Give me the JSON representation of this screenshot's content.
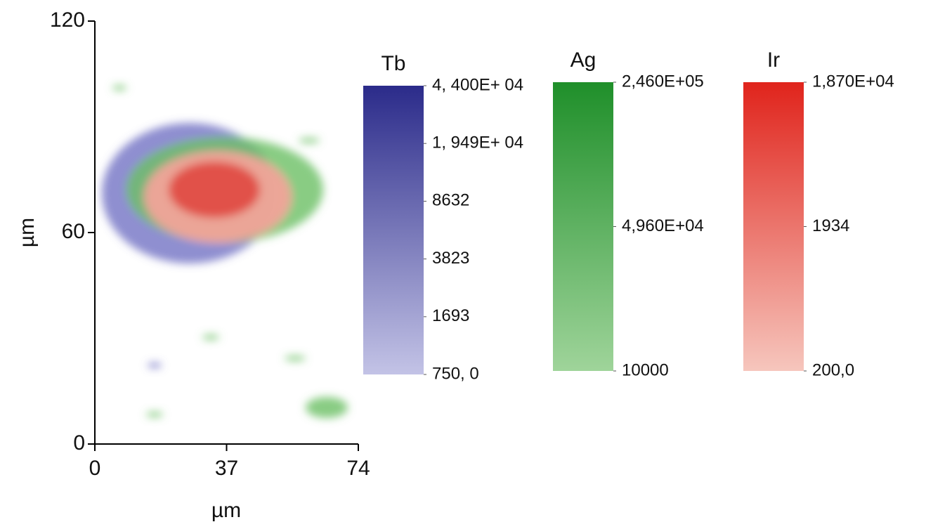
{
  "chart_data": {
    "type": "map",
    "xlabel": "µm",
    "ylabel": "µm",
    "xlim": [
      0,
      74
    ],
    "xticks": [
      0,
      37,
      74
    ],
    "ylim": [
      0,
      120
    ],
    "yticks": [
      0,
      60,
      120
    ],
    "colorbars": [
      {
        "name": "Tb",
        "log": true,
        "colors": [
          "#c3c3e6",
          "#2b2b8a"
        ],
        "lim": [
          750,
          44000
        ],
        "ticks": [
          {
            "value": 44000,
            "label": "4, 400E+ 04"
          },
          {
            "value": 19490,
            "label": "1, 949E+ 04"
          },
          8632,
          3823,
          1693,
          {
            "value": 750,
            "label": "750, 0"
          }
        ]
      },
      {
        "name": "Ag",
        "log": true,
        "colors": [
          "#9fd49a",
          "#1f8f2a"
        ],
        "lim": [
          10000,
          246000
        ],
        "ticks": [
          {
            "value": 246000,
            "label": "2,460E+05"
          },
          {
            "value": 49600,
            "label": "4,960E+04"
          },
          10000
        ]
      },
      {
        "name": "Ir",
        "log": true,
        "colors": [
          "#f6c6bd",
          "#e0241c"
        ],
        "lim": [
          200,
          18700
        ],
        "ticks": [
          {
            "value": 18700,
            "label": "1,870E+04"
          },
          1934,
          {
            "value": 200,
            "label": "200,0"
          }
        ]
      }
    ]
  }
}
